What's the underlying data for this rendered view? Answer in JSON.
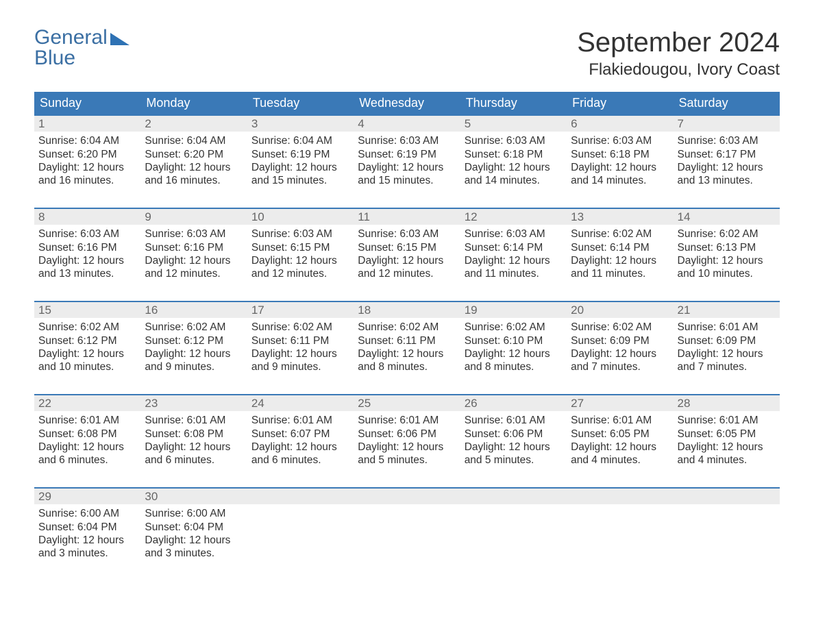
{
  "logo": {
    "text1": "General",
    "text2": "Blue"
  },
  "header": {
    "title": "September 2024",
    "subtitle": "Flakiedougou, Ivory Coast"
  },
  "colors": {
    "header_bg": "#3a79b7",
    "header_text": "#ffffff",
    "daynum_bg": "#ececec",
    "daynum_text": "#666666",
    "body_text": "#333333",
    "week_border": "#3a79b7",
    "logo_text": "#3b6fa3"
  },
  "weekdays": [
    "Sunday",
    "Monday",
    "Tuesday",
    "Wednesday",
    "Thursday",
    "Friday",
    "Saturday"
  ],
  "days": [
    {
      "n": "1",
      "sunrise": "Sunrise: 6:04 AM",
      "sunset": "Sunset: 6:20 PM",
      "d1": "Daylight: 12 hours",
      "d2": "and 16 minutes."
    },
    {
      "n": "2",
      "sunrise": "Sunrise: 6:04 AM",
      "sunset": "Sunset: 6:20 PM",
      "d1": "Daylight: 12 hours",
      "d2": "and 16 minutes."
    },
    {
      "n": "3",
      "sunrise": "Sunrise: 6:04 AM",
      "sunset": "Sunset: 6:19 PM",
      "d1": "Daylight: 12 hours",
      "d2": "and 15 minutes."
    },
    {
      "n": "4",
      "sunrise": "Sunrise: 6:03 AM",
      "sunset": "Sunset: 6:19 PM",
      "d1": "Daylight: 12 hours",
      "d2": "and 15 minutes."
    },
    {
      "n": "5",
      "sunrise": "Sunrise: 6:03 AM",
      "sunset": "Sunset: 6:18 PM",
      "d1": "Daylight: 12 hours",
      "d2": "and 14 minutes."
    },
    {
      "n": "6",
      "sunrise": "Sunrise: 6:03 AM",
      "sunset": "Sunset: 6:18 PM",
      "d1": "Daylight: 12 hours",
      "d2": "and 14 minutes."
    },
    {
      "n": "7",
      "sunrise": "Sunrise: 6:03 AM",
      "sunset": "Sunset: 6:17 PM",
      "d1": "Daylight: 12 hours",
      "d2": "and 13 minutes."
    },
    {
      "n": "8",
      "sunrise": "Sunrise: 6:03 AM",
      "sunset": "Sunset: 6:16 PM",
      "d1": "Daylight: 12 hours",
      "d2": "and 13 minutes."
    },
    {
      "n": "9",
      "sunrise": "Sunrise: 6:03 AM",
      "sunset": "Sunset: 6:16 PM",
      "d1": "Daylight: 12 hours",
      "d2": "and 12 minutes."
    },
    {
      "n": "10",
      "sunrise": "Sunrise: 6:03 AM",
      "sunset": "Sunset: 6:15 PM",
      "d1": "Daylight: 12 hours",
      "d2": "and 12 minutes."
    },
    {
      "n": "11",
      "sunrise": "Sunrise: 6:03 AM",
      "sunset": "Sunset: 6:15 PM",
      "d1": "Daylight: 12 hours",
      "d2": "and 12 minutes."
    },
    {
      "n": "12",
      "sunrise": "Sunrise: 6:03 AM",
      "sunset": "Sunset: 6:14 PM",
      "d1": "Daylight: 12 hours",
      "d2": "and 11 minutes."
    },
    {
      "n": "13",
      "sunrise": "Sunrise: 6:02 AM",
      "sunset": "Sunset: 6:14 PM",
      "d1": "Daylight: 12 hours",
      "d2": "and 11 minutes."
    },
    {
      "n": "14",
      "sunrise": "Sunrise: 6:02 AM",
      "sunset": "Sunset: 6:13 PM",
      "d1": "Daylight: 12 hours",
      "d2": "and 10 minutes."
    },
    {
      "n": "15",
      "sunrise": "Sunrise: 6:02 AM",
      "sunset": "Sunset: 6:12 PM",
      "d1": "Daylight: 12 hours",
      "d2": "and 10 minutes."
    },
    {
      "n": "16",
      "sunrise": "Sunrise: 6:02 AM",
      "sunset": "Sunset: 6:12 PM",
      "d1": "Daylight: 12 hours",
      "d2": "and 9 minutes."
    },
    {
      "n": "17",
      "sunrise": "Sunrise: 6:02 AM",
      "sunset": "Sunset: 6:11 PM",
      "d1": "Daylight: 12 hours",
      "d2": "and 9 minutes."
    },
    {
      "n": "18",
      "sunrise": "Sunrise: 6:02 AM",
      "sunset": "Sunset: 6:11 PM",
      "d1": "Daylight: 12 hours",
      "d2": "and 8 minutes."
    },
    {
      "n": "19",
      "sunrise": "Sunrise: 6:02 AM",
      "sunset": "Sunset: 6:10 PM",
      "d1": "Daylight: 12 hours",
      "d2": "and 8 minutes."
    },
    {
      "n": "20",
      "sunrise": "Sunrise: 6:02 AM",
      "sunset": "Sunset: 6:09 PM",
      "d1": "Daylight: 12 hours",
      "d2": "and 7 minutes."
    },
    {
      "n": "21",
      "sunrise": "Sunrise: 6:01 AM",
      "sunset": "Sunset: 6:09 PM",
      "d1": "Daylight: 12 hours",
      "d2": "and 7 minutes."
    },
    {
      "n": "22",
      "sunrise": "Sunrise: 6:01 AM",
      "sunset": "Sunset: 6:08 PM",
      "d1": "Daylight: 12 hours",
      "d2": "and 6 minutes."
    },
    {
      "n": "23",
      "sunrise": "Sunrise: 6:01 AM",
      "sunset": "Sunset: 6:08 PM",
      "d1": "Daylight: 12 hours",
      "d2": "and 6 minutes."
    },
    {
      "n": "24",
      "sunrise": "Sunrise: 6:01 AM",
      "sunset": "Sunset: 6:07 PM",
      "d1": "Daylight: 12 hours",
      "d2": "and 6 minutes."
    },
    {
      "n": "25",
      "sunrise": "Sunrise: 6:01 AM",
      "sunset": "Sunset: 6:06 PM",
      "d1": "Daylight: 12 hours",
      "d2": "and 5 minutes."
    },
    {
      "n": "26",
      "sunrise": "Sunrise: 6:01 AM",
      "sunset": "Sunset: 6:06 PM",
      "d1": "Daylight: 12 hours",
      "d2": "and 5 minutes."
    },
    {
      "n": "27",
      "sunrise": "Sunrise: 6:01 AM",
      "sunset": "Sunset: 6:05 PM",
      "d1": "Daylight: 12 hours",
      "d2": "and 4 minutes."
    },
    {
      "n": "28",
      "sunrise": "Sunrise: 6:01 AM",
      "sunset": "Sunset: 6:05 PM",
      "d1": "Daylight: 12 hours",
      "d2": "and 4 minutes."
    },
    {
      "n": "29",
      "sunrise": "Sunrise: 6:00 AM",
      "sunset": "Sunset: 6:04 PM",
      "d1": "Daylight: 12 hours",
      "d2": "and 3 minutes."
    },
    {
      "n": "30",
      "sunrise": "Sunrise: 6:00 AM",
      "sunset": "Sunset: 6:04 PM",
      "d1": "Daylight: 12 hours",
      "d2": "and 3 minutes."
    }
  ],
  "trailing_empty": 5
}
